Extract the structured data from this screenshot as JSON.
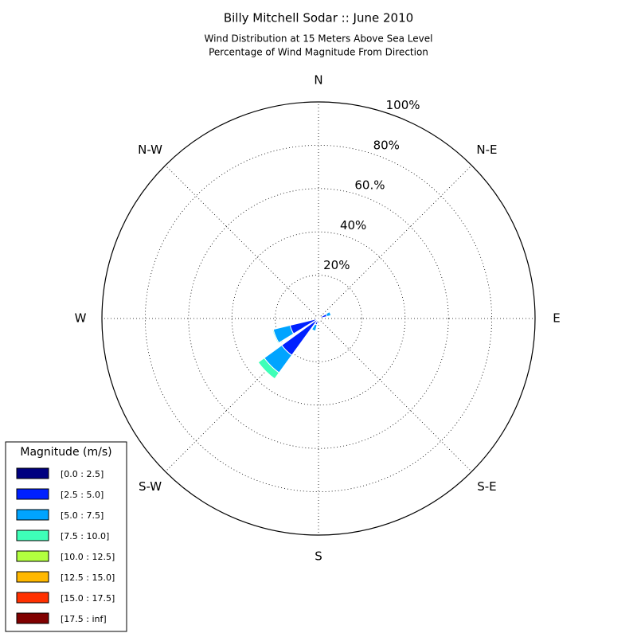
{
  "chart_data": {
    "type": "windrose",
    "title": "Billy Mitchell Sodar :: June 2010",
    "subtitle": [
      "Wind Distribution at 15 Meters Above Sea Level",
      "Percentage of Wind Magnitude From Direction"
    ],
    "categories": [
      "N",
      null,
      "N-E",
      null,
      "E",
      null,
      "S-E",
      null,
      "S",
      null,
      "S-W",
      null,
      "W",
      null,
      "N-W",
      null
    ],
    "ylim": [
      0,
      100
    ],
    "yticks": [
      {
        "value": 20,
        "label": "20%"
      },
      {
        "value": 40,
        "label": "40%"
      },
      {
        "value": 60,
        "label": "60.%"
      },
      {
        "value": 80,
        "label": "80%"
      },
      {
        "value": 100,
        "label": "100%"
      }
    ],
    "legend_title": "Magnitude (m/s)",
    "legend_position": "lower left",
    "series": [
      {
        "name": "[0.0 : 2.5]",
        "color": "#000080",
        "values": [
          0,
          0,
          0,
          0.5,
          0,
          0,
          0,
          0,
          0,
          0.5,
          1,
          1,
          0,
          0,
          0,
          0
        ]
      },
      {
        "name": "[2.5 : 5.0]",
        "color": "#0020ff",
        "values": [
          0,
          0,
          0,
          3.5,
          0,
          0,
          0,
          0,
          0,
          2.5,
          20,
          12.5,
          0,
          0,
          0,
          0
        ]
      },
      {
        "name": "[5.0 : 7.5]",
        "color": "#00a4ff",
        "values": [
          0,
          0,
          0,
          2,
          0,
          0,
          0,
          0,
          0,
          3,
          10,
          8,
          0,
          0,
          0,
          0
        ]
      },
      {
        "name": "[7.5 : 10.0]",
        "color": "#3effb8",
        "values": [
          0,
          0,
          0,
          0,
          0,
          0,
          0,
          0,
          0,
          0,
          3.5,
          0.5,
          0,
          0,
          0,
          0
        ]
      },
      {
        "name": "[10.0 : 12.5]",
        "color": "#b2ff3f",
        "values": [
          0,
          0,
          0,
          0,
          0,
          0,
          0,
          0,
          0,
          0,
          0,
          0,
          0,
          0,
          0,
          0
        ]
      },
      {
        "name": "[12.5 : 15.0]",
        "color": "#ffb800",
        "values": [
          0,
          0,
          0,
          0,
          0,
          0,
          0,
          0,
          0,
          0,
          0,
          0,
          0,
          0,
          0,
          0
        ]
      },
      {
        "name": "[15.0 : 17.5]",
        "color": "#ff3000",
        "values": [
          0,
          0,
          0,
          0,
          0,
          0,
          0,
          0,
          0,
          0,
          0,
          0,
          0,
          0,
          0,
          0
        ]
      },
      {
        "name": "[17.5 : inf]",
        "color": "#800000",
        "values": [
          0,
          0,
          0,
          0,
          0,
          0,
          0,
          0,
          0,
          0,
          0,
          0,
          0,
          0,
          0,
          0
        ]
      }
    ]
  }
}
